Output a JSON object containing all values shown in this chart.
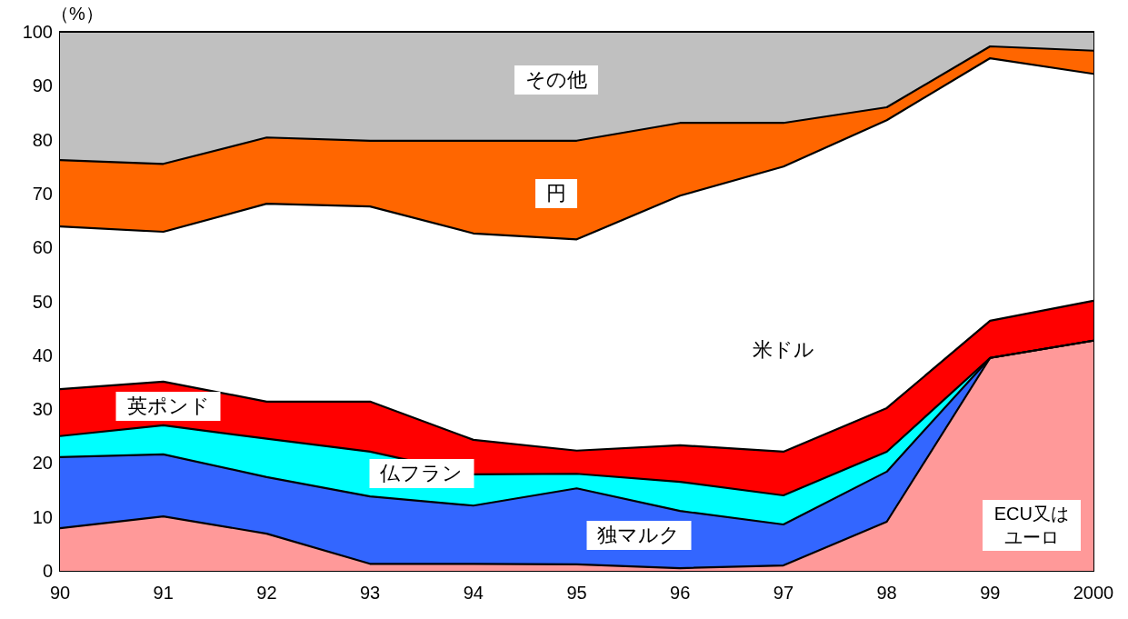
{
  "chart_data": {
    "type": "area",
    "ylabel": "（%）",
    "stacked": true,
    "legend": false,
    "grid": false,
    "categories": [
      "90",
      "91",
      "92",
      "93",
      "94",
      "95",
      "96",
      "97",
      "98",
      "99",
      "2000"
    ],
    "ylim": [
      0,
      100
    ],
    "yticks": [
      0,
      10,
      20,
      30,
      40,
      50,
      60,
      70,
      80,
      90,
      100
    ],
    "series": [
      {
        "name": "ECU又はユーロ",
        "color": "#ff9999",
        "values": [
          7.9,
          10.1,
          6.9,
          1.3,
          1.3,
          1.2,
          0.5,
          1.0,
          9.1,
          39.5,
          42.7
        ]
      },
      {
        "name": "独マルク",
        "color": "#3366ff",
        "values": [
          13.2,
          11.5,
          10.5,
          12.5,
          10.8,
          14.1,
          10.6,
          7.6,
          9.3,
          0,
          0
        ]
      },
      {
        "name": "仏フラン",
        "color": "#00ffff",
        "values": [
          3.9,
          5.4,
          7.1,
          8.3,
          5.8,
          2.7,
          5.4,
          5.4,
          3.7,
          0,
          0
        ]
      },
      {
        "name": "英ポンド",
        "color": "#ff0000",
        "values": [
          8.7,
          8.1,
          6.9,
          9.3,
          6.4,
          4.3,
          6.8,
          8.1,
          8.1,
          6.9,
          7.4
        ]
      },
      {
        "name": "米ドル",
        "color": "#ffffff",
        "values": [
          30.2,
          27.8,
          36.7,
          36.2,
          38.3,
          39.2,
          46.3,
          52.9,
          53.4,
          48.7,
          42.1
        ]
      },
      {
        "name": "円",
        "color": "#ff6600",
        "values": [
          12.3,
          12.6,
          12.3,
          12.2,
          17.2,
          18.3,
          13.5,
          8.1,
          2.4,
          2.2,
          4.3
        ]
      },
      {
        "name": "その他",
        "color": "#c0c0c0",
        "values": [
          23.8,
          24.5,
          19.6,
          20.2,
          20.2,
          20.2,
          16.9,
          16.9,
          14.0,
          2.7,
          3.5
        ]
      }
    ]
  }
}
